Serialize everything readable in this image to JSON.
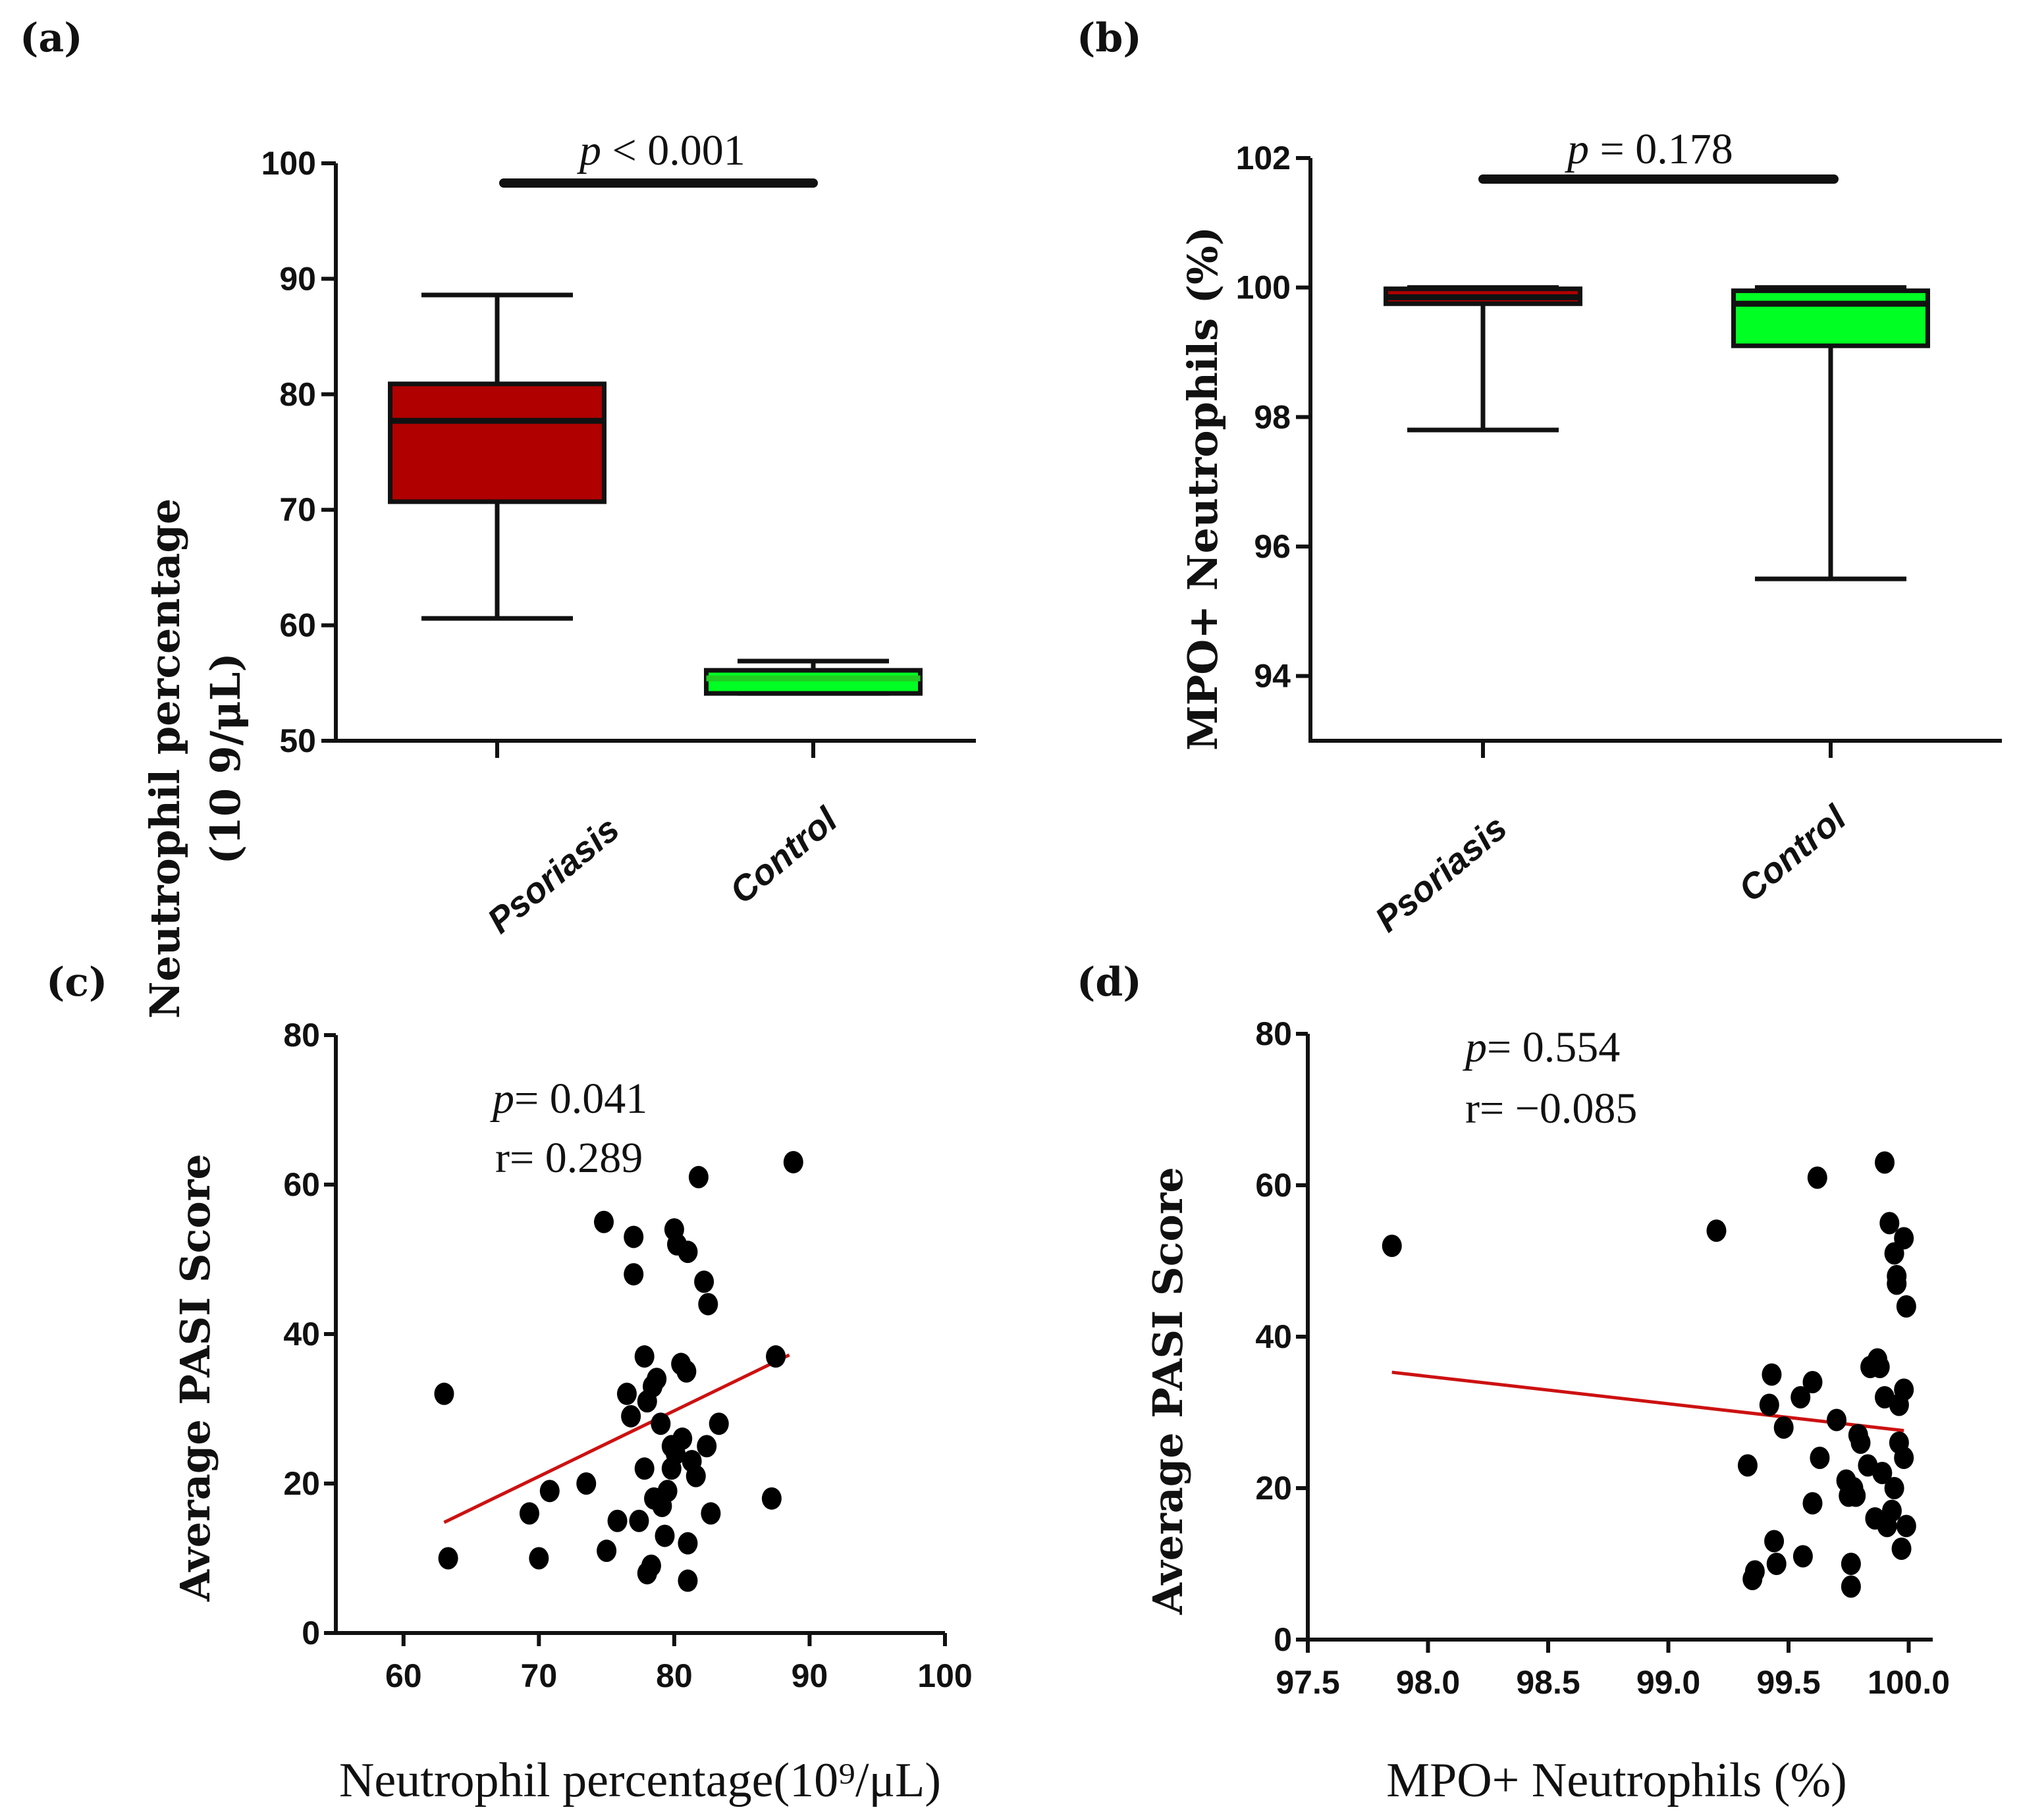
{
  "colors": {
    "psoriasis_fill": "#b00000",
    "control_fill": "#00ff22",
    "control_median_a": "#22cc22",
    "regression_line": "#cc1111"
  },
  "chart_data": [
    {
      "panel": "(a)",
      "type": "box",
      "ylabel_line1": "Neutrophil percentage",
      "ylabel_line2": "(10 9/μL)",
      "ylim": [
        50,
        100
      ],
      "yticks": [
        50,
        60,
        70,
        80,
        90,
        100
      ],
      "categories": [
        "Psoriasis",
        "Control"
      ],
      "boxes": [
        {
          "name": "Psoriasis",
          "min": 60.6,
          "q1": 70.7,
          "median": 77.7,
          "q3": 80.9,
          "max": 88.6
        },
        {
          "name": "Control",
          "min": 54.1,
          "q1": 54.1,
          "median": 55.4,
          "q3": 56.1,
          "max": 56.9
        }
      ],
      "significance": {
        "p_label": "p",
        "p_text": " < 0.001"
      }
    },
    {
      "panel": "(b)",
      "type": "box",
      "ylabel": "MPO+ Neutrophils (%)",
      "ylim": [
        93,
        102
      ],
      "yticks": [
        94,
        96,
        98,
        100,
        102
      ],
      "categories": [
        "Psoriasis",
        "Control"
      ],
      "boxes": [
        {
          "name": "Psoriasis",
          "min": 97.8,
          "q1": 99.75,
          "median": 99.85,
          "q3": 99.98,
          "max": 100.0
        },
        {
          "name": "Control",
          "min": 95.5,
          "q1": 99.1,
          "median": 99.75,
          "q3": 99.95,
          "max": 100.0
        }
      ],
      "significance": {
        "p_label": "p",
        "p_text": " = 0.178"
      }
    },
    {
      "panel": "(c)",
      "type": "scatter",
      "ylabel": "Average PASI Score",
      "xlabel": "Neutrophil percentage(10⁹/μL)",
      "xlim": [
        55,
        100
      ],
      "ylim": [
        0,
        80
      ],
      "xticks": [
        60,
        70,
        80,
        90,
        100
      ],
      "yticks": [
        0,
        20,
        40,
        60,
        80
      ],
      "stats": {
        "p_label": "p",
        "p_text": "= 0.041",
        "r_text": "r= 0.289"
      },
      "regression": {
        "x": [
          63,
          88.5
        ],
        "y": [
          14.8,
          37.2
        ]
      },
      "points": [
        [
          63.0,
          32
        ],
        [
          63.3,
          10
        ],
        [
          69.3,
          16
        ],
        [
          70.0,
          10
        ],
        [
          70.8,
          19
        ],
        [
          73.5,
          20
        ],
        [
          74.8,
          55
        ],
        [
          75.0,
          11
        ],
        [
          75.8,
          15
        ],
        [
          76.5,
          32
        ],
        [
          76.8,
          29
        ],
        [
          77.0,
          53
        ],
        [
          77.0,
          48
        ],
        [
          77.4,
          15
        ],
        [
          77.8,
          37
        ],
        [
          78.0,
          8
        ],
        [
          78.3,
          9
        ],
        [
          77.8,
          22
        ],
        [
          78.0,
          31
        ],
        [
          78.4,
          33
        ],
        [
          78.7,
          34
        ],
        [
          79.0,
          28
        ],
        [
          78.5,
          18
        ],
        [
          79.1,
          17
        ],
        [
          79.3,
          13
        ],
        [
          79.5,
          19
        ],
        [
          79.8,
          22
        ],
        [
          79.8,
          25
        ],
        [
          80.1,
          24
        ],
        [
          80.0,
          54
        ],
        [
          80.2,
          52
        ],
        [
          80.5,
          36
        ],
        [
          80.6,
          26
        ],
        [
          80.9,
          35
        ],
        [
          81.0,
          12
        ],
        [
          81.0,
          7
        ],
        [
          81.0,
          51
        ],
        [
          81.3,
          23
        ],
        [
          81.6,
          21
        ],
        [
          81.8,
          61
        ],
        [
          82.2,
          47
        ],
        [
          82.5,
          44
        ],
        [
          82.7,
          16
        ],
        [
          82.4,
          25
        ],
        [
          83.3,
          28
        ],
        [
          87.2,
          18
        ],
        [
          87.5,
          37
        ],
        [
          88.8,
          63
        ]
      ]
    },
    {
      "panel": "(d)",
      "type": "scatter",
      "ylabel": "Average PASI Score",
      "xlabel": "MPO+ Neutrophils (%)",
      "xlim": [
        97.5,
        100.1
      ],
      "ylim": [
        0,
        80
      ],
      "xticks": [
        "97.5",
        "98.0",
        "98.5",
        "99.0",
        "99.5",
        "100.0"
      ],
      "yticks": [
        0,
        20,
        40,
        60,
        80
      ],
      "stats": {
        "p_label": "p",
        "p_text": "=  0.554",
        "r_text": "r= −0.085"
      },
      "regression": {
        "x": [
          97.85,
          99.98
        ],
        "y": [
          35.3,
          27.6
        ]
      },
      "points": [
        [
          97.85,
          52
        ],
        [
          99.2,
          54
        ],
        [
          99.33,
          23
        ],
        [
          99.35,
          8
        ],
        [
          99.36,
          9
        ],
        [
          99.42,
          31
        ],
        [
          99.43,
          35
        ],
        [
          99.44,
          13
        ],
        [
          99.45,
          10
        ],
        [
          99.48,
          28
        ],
        [
          99.55,
          32
        ],
        [
          99.56,
          11
        ],
        [
          99.6,
          34
        ],
        [
          99.6,
          18
        ],
        [
          99.62,
          61
        ],
        [
          99.63,
          24
        ],
        [
          99.7,
          29
        ],
        [
          99.74,
          21
        ],
        [
          99.75,
          19
        ],
        [
          99.76,
          10
        ],
        [
          99.76,
          7
        ],
        [
          99.77,
          20
        ],
        [
          99.78,
          19
        ],
        [
          99.79,
          27
        ],
        [
          99.8,
          26
        ],
        [
          99.83,
          23
        ],
        [
          99.84,
          36
        ],
        [
          99.86,
          16
        ],
        [
          99.87,
          37
        ],
        [
          99.88,
          36
        ],
        [
          99.89,
          22
        ],
        [
          99.9,
          63
        ],
        [
          99.9,
          32
        ],
        [
          99.91,
          15
        ],
        [
          99.92,
          55
        ],
        [
          99.93,
          17
        ],
        [
          99.94,
          20
        ],
        [
          99.94,
          51
        ],
        [
          99.95,
          47
        ],
        [
          99.95,
          48
        ],
        [
          99.96,
          31
        ],
        [
          99.96,
          26
        ],
        [
          99.97,
          12
        ],
        [
          99.98,
          24
        ],
        [
          99.98,
          33
        ],
        [
          99.98,
          53
        ],
        [
          99.99,
          44
        ],
        [
          99.99,
          15
        ]
      ]
    }
  ]
}
